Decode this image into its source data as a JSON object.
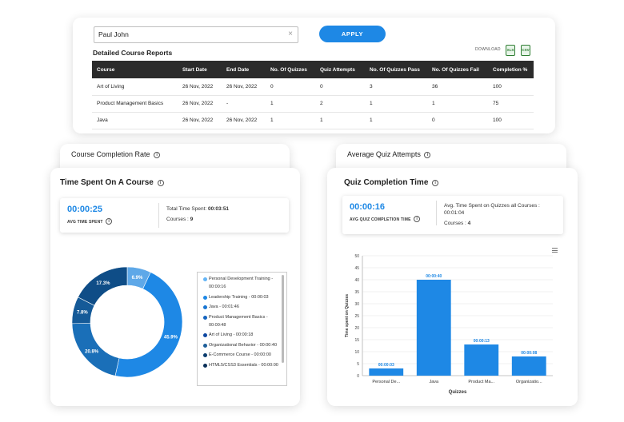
{
  "report": {
    "search_value": "Paul John",
    "clear_glyph": "×",
    "apply_label": "APPLY",
    "title": "Detailed Course Reports",
    "download_label": "DOWNLOAD",
    "xls_label": "XLS",
    "csv_label": "CSV",
    "columns": [
      "Course",
      "Start Date",
      "End Date",
      "No. Of Quizzes",
      "Quiz Attempts",
      "No. Of Quizzes Pass",
      "No. Of Quizzes Fail",
      "Completion %"
    ],
    "rows": [
      [
        "Art of Living",
        "26 Nov, 2022",
        "26 Nov, 2022",
        "0",
        "0",
        "3",
        "36",
        "100"
      ],
      [
        "Product Management Basics",
        "26 Nov, 2022",
        "-",
        "1",
        "2",
        "1",
        "1",
        "75"
      ],
      [
        "Java",
        "26 Nov, 2022",
        "26 Nov, 2022",
        "1",
        "1",
        "1",
        "0",
        "100"
      ]
    ]
  },
  "course_completion": {
    "title": "Course Completion Rate"
  },
  "avg_quiz": {
    "title": "Average Quiz Attempts"
  },
  "info_glyph": "i",
  "time_spent": {
    "title": "Time Spent On A Course",
    "avg_value": "00:00:25",
    "avg_label": "AVG TIME SPENT",
    "total_label": "Total Time Spent: ",
    "total_value": "00:03:51",
    "courses_label": "Courses : ",
    "courses_value": "9",
    "legend": [
      "Personal Development Training - 00:00:16",
      "Leadership Training - 00:00:03",
      "Java - 00:01:46",
      "Product Management Basics - 00:00:48",
      "Art of Living - 00:00:18",
      "Organizational Behavior - 00:00:40",
      "E-Commerce Course - 00:00:00",
      "HTML5/CSS3 Essentials - 00:00:00"
    ],
    "slice_colors": [
      "#64b5f6",
      "#1e88e5",
      "#1976d2",
      "#1565c0",
      "#0d47a1",
      "#1f5f99",
      "#0b3c6e",
      "#0a2f58"
    ]
  },
  "quiz_time": {
    "title": "Quiz Completion Time",
    "avg_value": "00:00:16",
    "avg_label": "AVG QUIZ COMPLETION TIME",
    "avg_line": "Avg. Time Spent on Quizzes all Courses : 00:01:04",
    "courses_label": "Courses : ",
    "courses_value": "4"
  },
  "chart_data": [
    {
      "type": "pie",
      "title": "",
      "slices": [
        {
          "label": "6.9%",
          "value": 6.9
        },
        {
          "label": "45.9%",
          "value": 45.9
        },
        {
          "label": "20.8%",
          "value": 20.8
        },
        {
          "label": "7.8%",
          "value": 7.8
        },
        {
          "label": "17.3%",
          "value": 17.3
        }
      ],
      "colors": [
        "#5ea8e8",
        "#1e88e5",
        "#1a6fb8",
        "#155a98",
        "#0f4d87"
      ]
    },
    {
      "type": "bar",
      "title": "",
      "categories": [
        "Personal De...",
        "Java",
        "Product Ma...",
        "Organizatio..."
      ],
      "values": [
        3,
        40,
        13,
        8
      ],
      "data_labels": [
        "00:00:03",
        "00:00:40",
        "00:00:13",
        "00:00:08"
      ],
      "xlabel": "Quizzes",
      "ylabel": "Time spent on Quizzes",
      "ylim": [
        0,
        50
      ],
      "yticks": [
        0,
        5,
        10,
        15,
        20,
        25,
        30,
        35,
        40,
        45,
        50
      ],
      "bar_color": "#1e88e5",
      "grid": true
    }
  ]
}
